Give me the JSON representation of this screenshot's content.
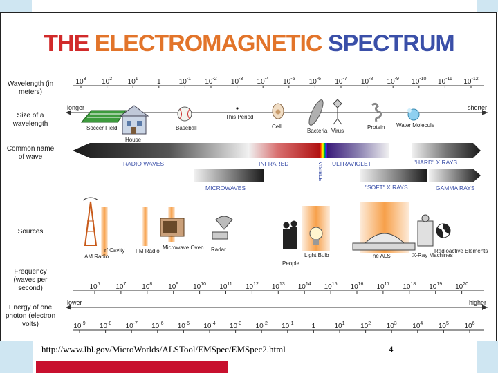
{
  "title": {
    "part1": "THE ",
    "part2": "ELECTROMAGNETIC ",
    "part3": "SPECTRUM"
  },
  "row_labels": {
    "wavelength": "Wavelength (in meters)",
    "size": "Size of a wavelength",
    "common": "Common name of wave",
    "sources": "Sources",
    "frequency": "Frequency (waves per second)",
    "energy": "Energy of one photon (electron volts)"
  },
  "wavelength_ticks": [
    "10^3",
    "10^2",
    "10^1",
    "1",
    "10^-1",
    "10^-2",
    "10^-3",
    "10^-4",
    "10^-5",
    "10^-6",
    "10^-7",
    "10^-8",
    "10^-9",
    "10^-10",
    "10^-11",
    "10^-12"
  ],
  "size_end_labels": {
    "left": "longer",
    "right": "shorter"
  },
  "size_objects": [
    "Soccer Field",
    "House",
    "Baseball",
    "This Period",
    "Cell",
    "Bacteria",
    "Virus",
    "Protein",
    "Water Molecule"
  ],
  "wave_names": [
    "RADIO WAVES",
    "INFRARED",
    "VISIBLE",
    "ULTRAVIOLET",
    "\"HARD\" X RAYS",
    "MICROWAVES",
    "\"SOFT\" X RAYS",
    "GAMMA RAYS"
  ],
  "sources": [
    "AM Radio",
    "rf Cavity",
    "FM Radio",
    "Microwave Oven",
    "Radar",
    "People",
    "Light Bulb",
    "The ALS",
    "X-Ray Machines",
    "Radioactive Elements"
  ],
  "frequency_ticks": [
    "10^6",
    "10^7",
    "10^8",
    "10^9",
    "10^10",
    "10^11",
    "10^12",
    "10^13",
    "10^14",
    "10^15",
    "10^16",
    "10^17",
    "10^18",
    "10^19",
    "10^20"
  ],
  "energy_end_labels": {
    "left": "lower",
    "right": "higher"
  },
  "energy_ticks": [
    "10^-9",
    "10^-8",
    "10^-7",
    "10^-6",
    "10^-5",
    "10^-4",
    "10^-3",
    "10^-2",
    "10^-1",
    "1",
    "10^1",
    "10^2",
    "10^3",
    "10^4",
    "10^5",
    "10^6"
  ],
  "footer": {
    "url": "http://www.lbl.gov/MicroWorlds/ALSTool/EMSpec/EMSpec2.html",
    "page": "4"
  },
  "colors": {
    "title_red": "#d12a2a",
    "title_orange": "#e2742a",
    "title_blue": "#3a4fa8",
    "corner": "#cfe6f2",
    "footer_bar": "#c8102e",
    "source_glow": "#f7a04a"
  }
}
